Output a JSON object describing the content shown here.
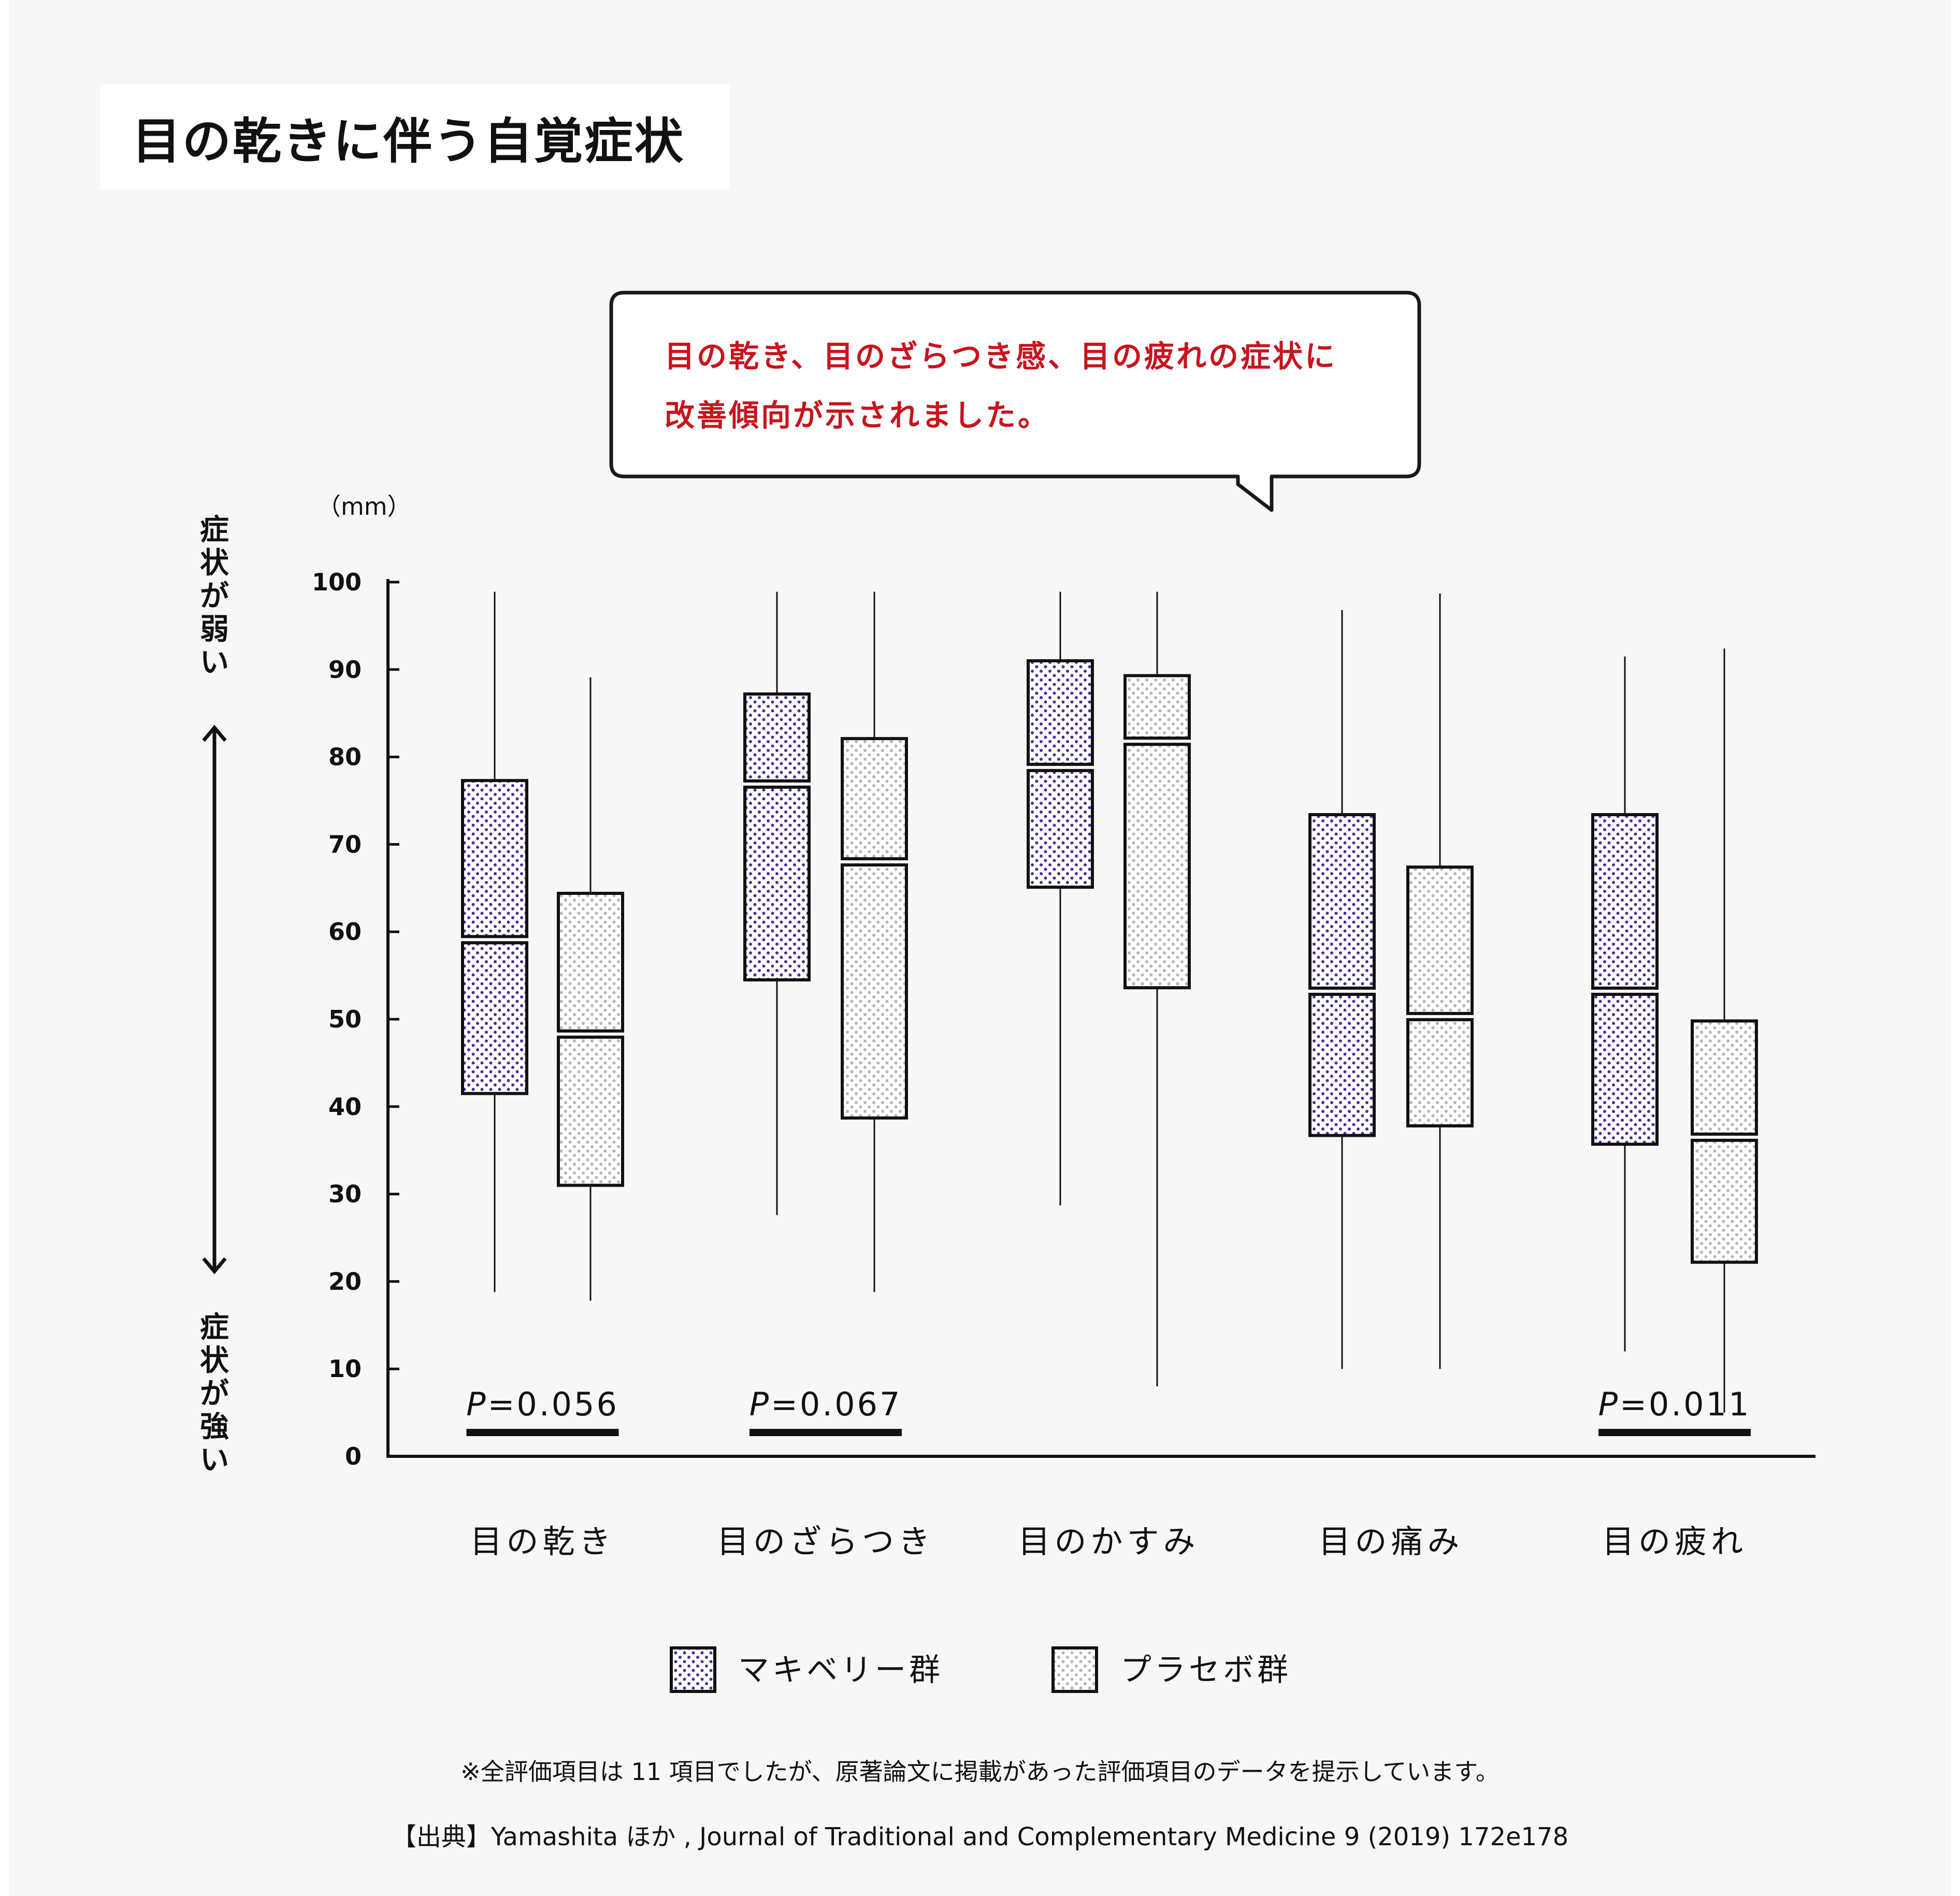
{
  "page": {
    "title": "目の乾きに伴う自覚症状"
  },
  "callout": {
    "line1": "目の乾き、目のざらつき感、目の疲れの症状に",
    "line2": "改善傾向が示されました。"
  },
  "axis": {
    "unit": "（mm）",
    "top_label": "症状が弱い",
    "bottom_label": "症状が強い"
  },
  "legend": {
    "maqui": "マキベリー群",
    "placebo": "プラセボ群"
  },
  "colors": {
    "maqui_dot": "#4b2c8f",
    "placebo_dot": "#b5b5b5",
    "box_stroke": "#111111",
    "callout_text": "#c8141e"
  },
  "footnotes": {
    "note": "※全評価項目は 11 項目でしたが、原著論文に掲載があった評価項目のデータを提示しています。",
    "source": "【出典】Yamashita ほか , Journal of Traditional and Complementary Medicine 9 (2019) 172e178"
  },
  "chart_data": {
    "type": "box",
    "ylim": [
      0,
      100
    ],
    "yticks": [
      0,
      10,
      20,
      30,
      40,
      50,
      60,
      70,
      80,
      90,
      100
    ],
    "ylabel": "（mm）",
    "categories": [
      "目の乾き",
      "目のざらつき",
      "目のかすみ",
      "目の痛み",
      "目の疲れ"
    ],
    "series": [
      {
        "name": "マキベリー群",
        "boxes": [
          {
            "min": 18.8,
            "q1": 41.5,
            "median": 59.1,
            "q3": 77.3,
            "max": 98.9
          },
          {
            "min": 27.6,
            "q1": 54.5,
            "median": 76.9,
            "q3": 87.2,
            "max": 98.9
          },
          {
            "min": 28.7,
            "q1": 65.1,
            "median": 78.8,
            "q3": 91.0,
            "max": 98.9
          },
          {
            "min": 10.0,
            "q1": 36.7,
            "median": 53.2,
            "q3": 73.4,
            "max": 96.8
          },
          {
            "min": 12.0,
            "q1": 35.7,
            "median": 53.2,
            "q3": 73.4,
            "max": 91.5
          }
        ]
      },
      {
        "name": "プラセボ群",
        "boxes": [
          {
            "min": 17.8,
            "q1": 31.0,
            "median": 48.3,
            "q3": 64.4,
            "max": 89.1
          },
          {
            "min": 18.8,
            "q1": 38.7,
            "median": 68.0,
            "q3": 82.1,
            "max": 98.9
          },
          {
            "min": 8.0,
            "q1": 53.6,
            "median": 81.8,
            "q3": 89.3,
            "max": 98.9
          },
          {
            "min": 10.0,
            "q1": 37.8,
            "median": 50.3,
            "q3": 67.4,
            "max": 98.7
          },
          {
            "min": 5.0,
            "q1": 22.2,
            "median": 36.5,
            "q3": 49.8,
            "max": 92.4
          }
        ]
      }
    ],
    "p_values": [
      {
        "category": "目の乾き",
        "text": "P=0.056"
      },
      {
        "category": "目のざらつき",
        "text": "P=0.067"
      },
      {
        "category": "目の疲れ",
        "text": "P=0.011"
      }
    ]
  }
}
